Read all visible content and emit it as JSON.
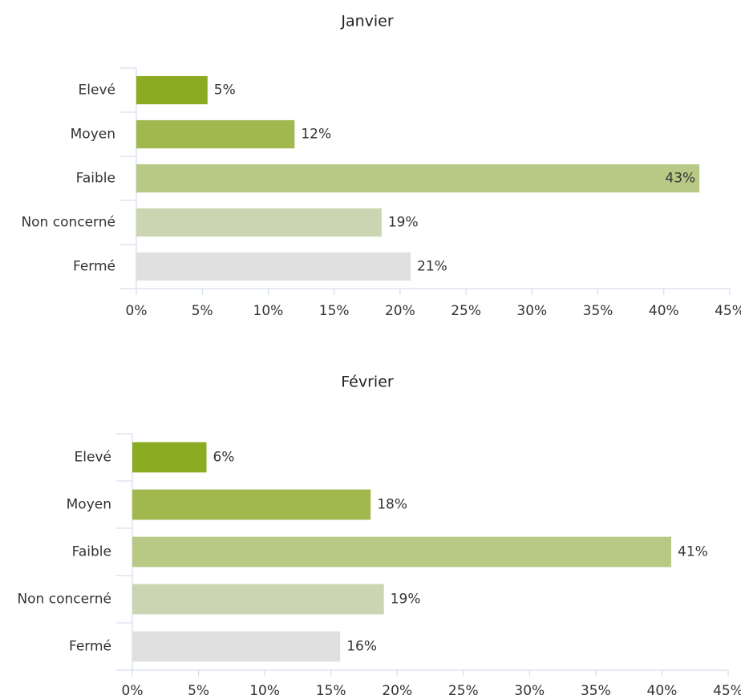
{
  "chart_data": [
    {
      "type": "bar",
      "orientation": "horizontal",
      "title": "Janvier",
      "categories": [
        "Elevé",
        "Moyen",
        "Faible",
        "Non concerné",
        "Fermé"
      ],
      "values": [
        5.4,
        12,
        42.7,
        18.6,
        20.8
      ],
      "value_labels": [
        "5%",
        "12%",
        "43%",
        "19%",
        "21%"
      ],
      "colors": [
        "#8aab22",
        "#a0b84e",
        "#b7c985",
        "#ccd5b2",
        "#e0e0e0"
      ],
      "xlim": [
        0,
        45
      ],
      "xticks": [
        {
          "value": 0,
          "label": "0%"
        },
        {
          "value": 5,
          "label": "5%"
        },
        {
          "value": 10,
          "label": "10%"
        },
        {
          "value": 15,
          "label": "15%"
        },
        {
          "value": 20,
          "label": "20%"
        },
        {
          "value": 25,
          "label": "25%"
        },
        {
          "value": 30,
          "label": "30%"
        },
        {
          "value": 35,
          "label": "35%"
        },
        {
          "value": 40,
          "label": "40%"
        },
        {
          "value": 45,
          "label": "45%"
        }
      ]
    },
    {
      "type": "bar",
      "orientation": "horizontal",
      "title": "Février",
      "categories": [
        "Elevé",
        "Moyen",
        "Faible",
        "Non concerné",
        "Fermé"
      ],
      "values": [
        5.6,
        18,
        40.7,
        19,
        15.7
      ],
      "value_labels": [
        "6%",
        "18%",
        "41%",
        "19%",
        "16%"
      ],
      "colors": [
        "#8aab22",
        "#a0b84e",
        "#b7c985",
        "#ccd5b2",
        "#e0e0e0"
      ],
      "xlim": [
        0,
        45
      ],
      "xticks": [
        {
          "value": 0,
          "label": "0%"
        },
        {
          "value": 5,
          "label": "5%"
        },
        {
          "value": 10,
          "label": "10%"
        },
        {
          "value": 15,
          "label": "15%"
        },
        {
          "value": 20,
          "label": "20%"
        },
        {
          "value": 25,
          "label": "25%"
        },
        {
          "value": 30,
          "label": "30%"
        },
        {
          "value": 35,
          "label": "35%"
        },
        {
          "value": 40,
          "label": "40%"
        },
        {
          "value": 45,
          "label": "45%"
        }
      ]
    }
  ]
}
